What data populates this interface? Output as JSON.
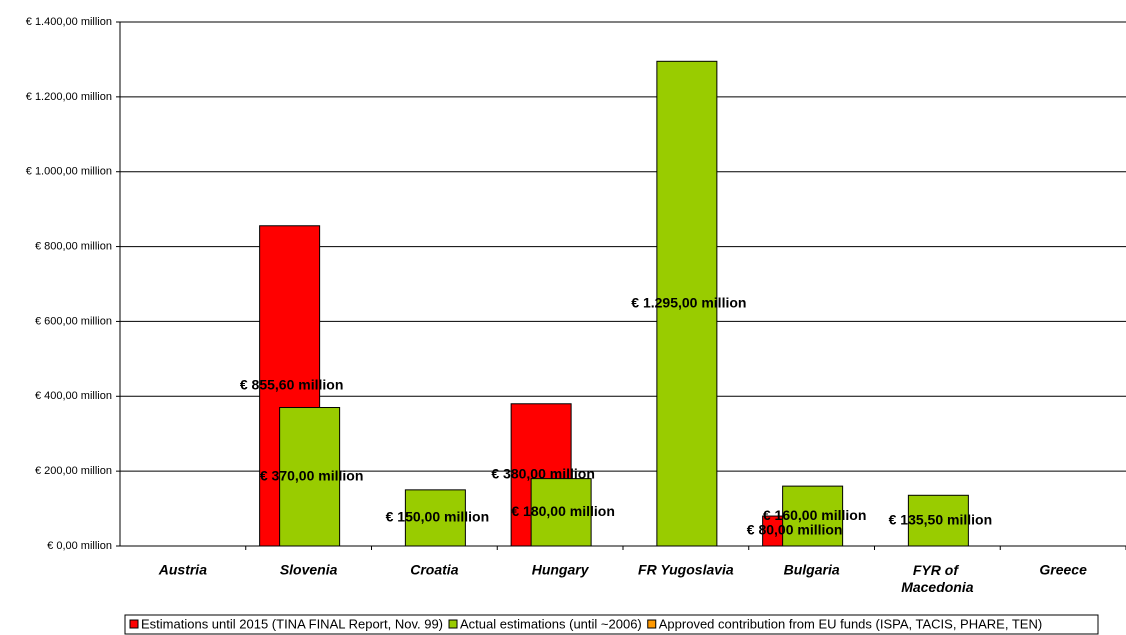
{
  "chart_data": {
    "type": "bar",
    "categories": [
      "Austria",
      "Slovenia",
      "Croatia",
      "Hungary",
      "FR Yugoslavia",
      "Bulgaria",
      "FYR of Macedonia",
      "Greece"
    ],
    "series": [
      {
        "name": "Estimations until 2015 (TINA FINAL Report, Nov. 99)",
        "color": "#ff0000",
        "values": [
          null,
          855.6,
          null,
          380,
          null,
          80,
          null,
          null
        ],
        "value_labels": [
          null,
          "€ 855,60 million",
          null,
          "€ 380,00 million",
          null,
          "€ 80,00 million",
          null,
          null
        ]
      },
      {
        "name": "Actual estimations (until ~2006)",
        "color": "#99cc00",
        "values": [
          null,
          370,
          150,
          180,
          1295,
          160,
          135.5,
          null
        ],
        "value_labels": [
          null,
          "€ 370,00 million",
          "€ 150,00 million",
          "€ 180,00 million",
          "€ 1.295,00 million",
          "€ 160,00 million",
          "€ 135,50 million",
          null
        ]
      },
      {
        "name": "Approved contribution from EU funds (ISPA, TACIS, PHARE, TEN)",
        "color": "#ff9900",
        "values": [
          null,
          null,
          null,
          null,
          null,
          null,
          null,
          null
        ]
      }
    ],
    "ylim": [
      0,
      1400
    ],
    "yticks": [
      {
        "value": 0,
        "label": "€ 0,00 million"
      },
      {
        "value": 200,
        "label": "€ 200,00 million"
      },
      {
        "value": 400,
        "label": "€ 400,00 million"
      },
      {
        "value": 600,
        "label": "€ 600,00 million"
      },
      {
        "value": 800,
        "label": "€ 800,00 million"
      },
      {
        "value": 1000,
        "label": "€ 1.000,00 million"
      },
      {
        "value": 1200,
        "label": "€ 1.200,00 million"
      },
      {
        "value": 1400,
        "label": "€ 1.400,00 million"
      }
    ],
    "grid": true,
    "legend": "bottom"
  }
}
